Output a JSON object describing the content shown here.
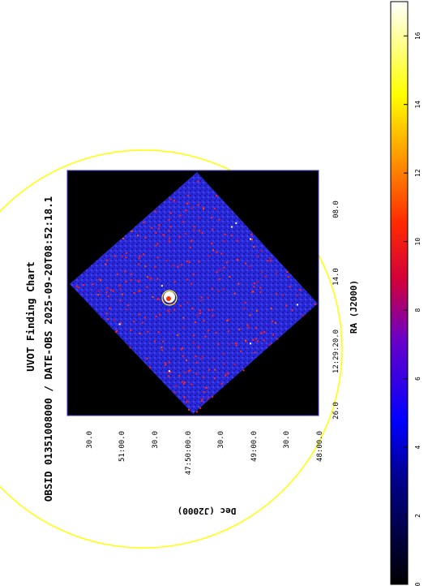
{
  "title": "UVOT Finding Chart",
  "subtitle": "OBSID 01351008000 / DATE-OBS 2025-09-20T08:52:18.1",
  "axes": {
    "ra_label": "RA (J2000)",
    "dec_label": "Dec (J2000)",
    "ra_ticks": [
      "26.0",
      "12:29:20.0",
      "14.0",
      "08.0"
    ],
    "dec_ticks": [
      "30.0",
      "51:00.0",
      "30.0",
      "47:50:00.0",
      "30.0",
      "49:00.0",
      "30.0",
      "48:00.0"
    ]
  },
  "colorbar": {
    "min": 0,
    "max": 17,
    "ticks": [
      "0",
      "2",
      "4",
      "6",
      "8",
      "10",
      "12",
      "14",
      "16"
    ],
    "colors": [
      "#000000",
      "#0000ff",
      "#ff0000",
      "#ffff00",
      "#ffffff"
    ]
  },
  "overlay": {
    "circle_color": "#ffff00",
    "source_marker_color": "#ffff00"
  },
  "image": {
    "background_color": "#000000",
    "frame_color": "#3b3bd6",
    "field_color": "#2a2ad8"
  }
}
